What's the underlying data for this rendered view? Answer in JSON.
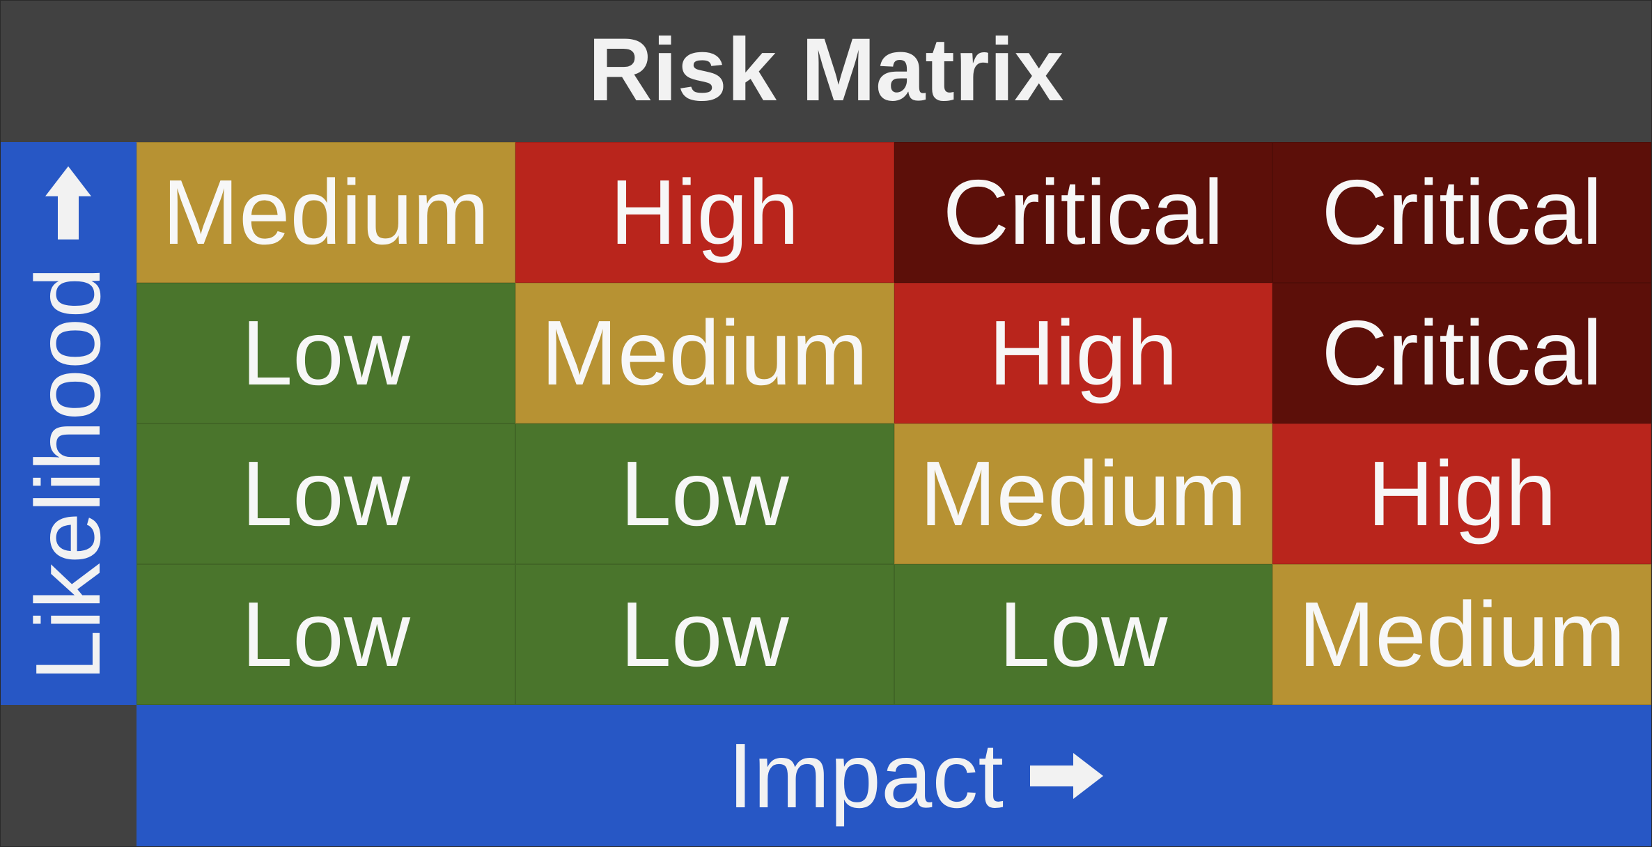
{
  "title": "Risk Matrix",
  "y_axis": {
    "label": "Likelihood",
    "icon": "arrow-up-icon"
  },
  "x_axis": {
    "label": "Impact",
    "icon": "arrow-right-icon"
  },
  "colors": {
    "Low": "#4a752c",
    "Medium": "#b79233",
    "High": "#b9251c",
    "Critical": "#5c0f09",
    "axis_bar": "#2757c5",
    "title_bar": "#414141"
  },
  "matrix": [
    [
      "Medium",
      "High",
      "Critical",
      "Critical"
    ],
    [
      "Low",
      "Medium",
      "High",
      "Critical"
    ],
    [
      "Low",
      "Low",
      "Medium",
      "High"
    ],
    [
      "Low",
      "Low",
      "Low",
      "Medium"
    ]
  ]
}
